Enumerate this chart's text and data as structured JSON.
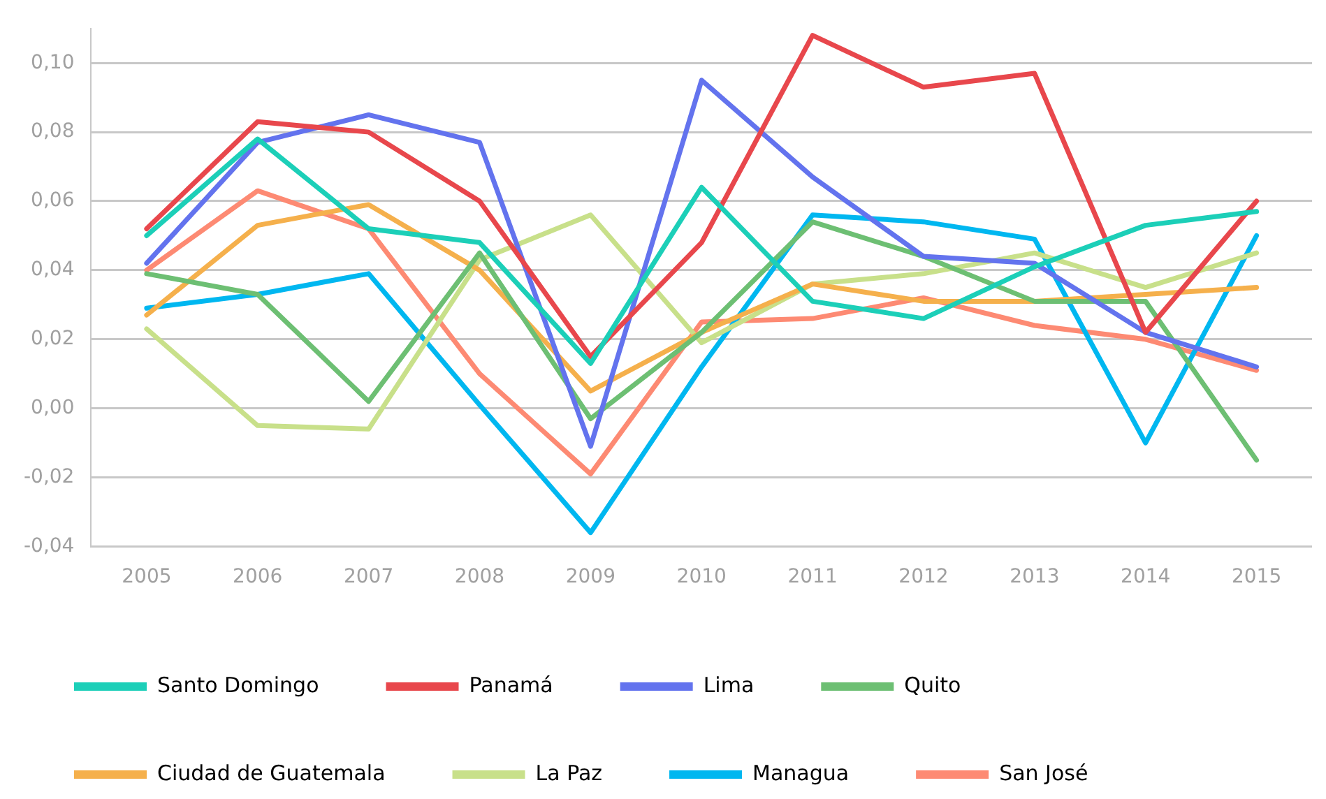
{
  "chart_data": {
    "type": "line",
    "categories": [
      "2005",
      "2006",
      "2007",
      "2008",
      "2009",
      "2010",
      "2011",
      "2012",
      "2013",
      "2014",
      "2015"
    ],
    "series": [
      {
        "name": "Santo Domingo",
        "color": "#1ccfb8",
        "values": [
          0.05,
          0.078,
          0.052,
          0.048,
          0.013,
          0.064,
          0.031,
          0.026,
          0.041,
          0.053,
          0.057
        ]
      },
      {
        "name": "Panamá",
        "color": "#e8474c",
        "values": [
          0.052,
          0.083,
          0.08,
          0.06,
          0.015,
          0.048,
          0.108,
          0.093,
          0.097,
          0.022,
          0.06
        ]
      },
      {
        "name": "Lima",
        "color": "#6373ee",
        "values": [
          0.042,
          0.077,
          0.085,
          0.077,
          -0.011,
          0.095,
          0.067,
          0.044,
          0.042,
          0.022,
          0.012
        ]
      },
      {
        "name": "Quito",
        "color": "#6dbf73",
        "values": [
          0.039,
          0.033,
          0.002,
          0.045,
          -0.003,
          0.022,
          0.054,
          0.044,
          0.031,
          0.031,
          -0.015
        ]
      },
      {
        "name": "Ciudad de Guatemala",
        "color": "#f5b04c",
        "values": [
          0.027,
          0.053,
          0.059,
          0.04,
          0.005,
          0.022,
          0.036,
          0.031,
          0.031,
          0.033,
          0.035
        ]
      },
      {
        "name": "La Paz",
        "color": "#c8e08a",
        "values": [
          0.023,
          -0.005,
          -0.006,
          0.043,
          0.056,
          0.019,
          0.036,
          0.039,
          0.045,
          0.035,
          0.045
        ]
      },
      {
        "name": "Managua",
        "color": "#00b7f0",
        "values": [
          0.029,
          0.033,
          0.039,
          0.001,
          -0.036,
          0.012,
          0.056,
          0.054,
          0.049,
          -0.01,
          0.05
        ]
      },
      {
        "name": "San José",
        "color": "#fd8a73",
        "values": [
          0.04,
          0.063,
          0.052,
          0.01,
          -0.019,
          0.025,
          0.026,
          0.032,
          0.024,
          0.02,
          0.011
        ]
      }
    ],
    "ylim": [
      -0.04,
      0.11
    ],
    "yticks": [
      {
        "value": -0.04,
        "label": "-0,04"
      },
      {
        "value": -0.02,
        "label": "-0,02"
      },
      {
        "value": 0,
        "label": "0,00"
      },
      {
        "value": 0.02,
        "label": "0,02"
      },
      {
        "value": 0.04,
        "label": "0,04"
      },
      {
        "value": 0.06,
        "label": "0,06"
      },
      {
        "value": 0.08,
        "label": "0,08"
      },
      {
        "value": 0.1,
        "label": "0,10"
      }
    ],
    "grid": "y",
    "legend": "bottom",
    "marker": "none",
    "line_style": "solid"
  }
}
